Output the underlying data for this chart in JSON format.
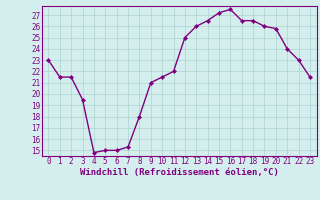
{
  "x": [
    0,
    1,
    2,
    3,
    4,
    5,
    6,
    7,
    8,
    9,
    10,
    11,
    12,
    13,
    14,
    15,
    16,
    17,
    18,
    19,
    20,
    21,
    22,
    23
  ],
  "y": [
    23.0,
    21.5,
    21.5,
    19.5,
    14.8,
    15.0,
    15.0,
    15.3,
    18.0,
    21.0,
    21.5,
    22.0,
    25.0,
    26.0,
    26.5,
    27.2,
    27.5,
    26.5,
    26.5,
    26.0,
    25.8,
    24.0,
    23.0,
    21.5
  ],
  "line_color": "#800080",
  "marker": "D",
  "marker_size": 2.0,
  "line_width": 1.0,
  "bg_color": "#d4eeed",
  "grid_color": "#aad4d0",
  "xlabel": "Windchill (Refroidissement éolien,°C)",
  "xlabel_color": "#800080",
  "xlabel_fontsize": 6.5,
  "tick_color": "#800080",
  "tick_fontsize": 5.5,
  "ylim": [
    14.5,
    27.8
  ],
  "yticks": [
    15,
    16,
    17,
    18,
    19,
    20,
    21,
    22,
    23,
    24,
    25,
    26,
    27
  ],
  "xticks": [
    0,
    1,
    2,
    3,
    4,
    5,
    6,
    7,
    8,
    9,
    10,
    11,
    12,
    13,
    14,
    15,
    16,
    17,
    18,
    19,
    20,
    21,
    22,
    23
  ],
  "xtick_labels": [
    "0",
    "1",
    "2",
    "3",
    "4",
    "5",
    "6",
    "7",
    "8",
    "9",
    "10",
    "11",
    "12",
    "13",
    "14",
    "15",
    "16",
    "17",
    "18",
    "19",
    "20",
    "21",
    "22",
    "23"
  ],
  "ytick_labels": [
    "15",
    "16",
    "17",
    "18",
    "19",
    "20",
    "21",
    "22",
    "23",
    "24",
    "25",
    "26",
    "27"
  ]
}
